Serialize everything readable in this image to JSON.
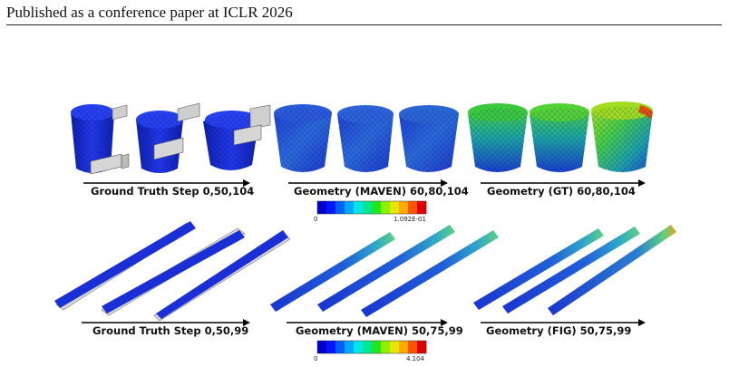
{
  "header": {
    "text": "Published as a conference paper at ICLR 2026"
  },
  "rows": [
    {
      "labels": [
        "Ground Truth Step 0,50,104",
        "Geometry (MAVEN) 60,80,104",
        "Geometry (GT) 60,80,104"
      ],
      "colorbar": {
        "min": "0",
        "max": "1.092E-01"
      }
    },
    {
      "labels": [
        "Ground Truth Step 0,50,99",
        "Geometry (MAVEN) 50,75,99",
        "Geometry (FIG) 50,75,99"
      ],
      "colorbar": {
        "min": "0",
        "max": "4.104"
      }
    }
  ],
  "colors": {
    "mesh_blue": "#1a2fd6",
    "scale": [
      "#0000c8",
      "#0018ff",
      "#0060ff",
      "#00a8ff",
      "#00e6e6",
      "#00e890",
      "#22e622",
      "#8cf000",
      "#e6e600",
      "#ffaa00",
      "#ff5500",
      "#e00000"
    ]
  }
}
